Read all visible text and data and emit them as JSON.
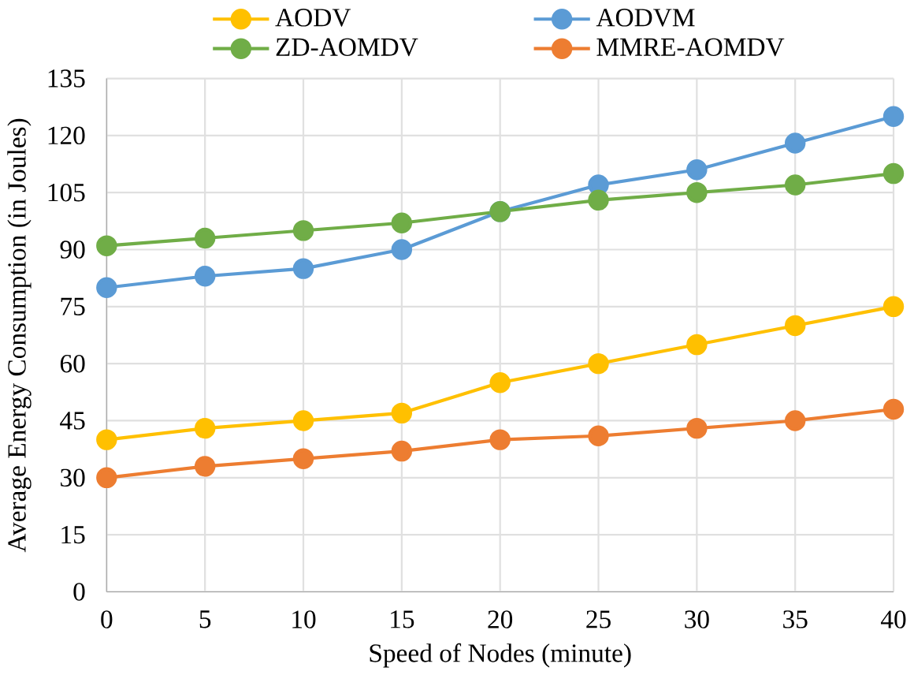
{
  "chart_data": {
    "type": "line",
    "xlabel": "Speed of Nodes (minute)",
    "ylabel": "Average Energy Consumption (in Joules)",
    "x": [
      0,
      5,
      10,
      15,
      20,
      25,
      30,
      35,
      40
    ],
    "series": [
      {
        "name": "AODV",
        "color": "#ffc000",
        "values": [
          40,
          43,
          45,
          47,
          55,
          60,
          65,
          70,
          75
        ]
      },
      {
        "name": "AODVM",
        "color": "#5b9bd5",
        "values": [
          80,
          83,
          85,
          90,
          100,
          107,
          111,
          118,
          125
        ]
      },
      {
        "name": "ZD-AOMDV",
        "color": "#70ad47",
        "values": [
          91,
          93,
          95,
          97,
          100,
          103,
          105,
          107,
          110
        ]
      },
      {
        "name": "MMRE-AOMDV",
        "color": "#ed7d31",
        "values": [
          30,
          33,
          35,
          37,
          40,
          41,
          43,
          45,
          48
        ]
      }
    ],
    "xlim": [
      0,
      40
    ],
    "xticks": [
      0,
      5,
      10,
      15,
      20,
      25,
      30,
      35,
      40
    ],
    "ylim": [
      0,
      135
    ],
    "yticks": [
      0,
      15,
      30,
      45,
      60,
      75,
      90,
      105,
      120,
      135
    ],
    "grid": true,
    "legend": "top",
    "marker": "circle",
    "line_style": "solid"
  }
}
